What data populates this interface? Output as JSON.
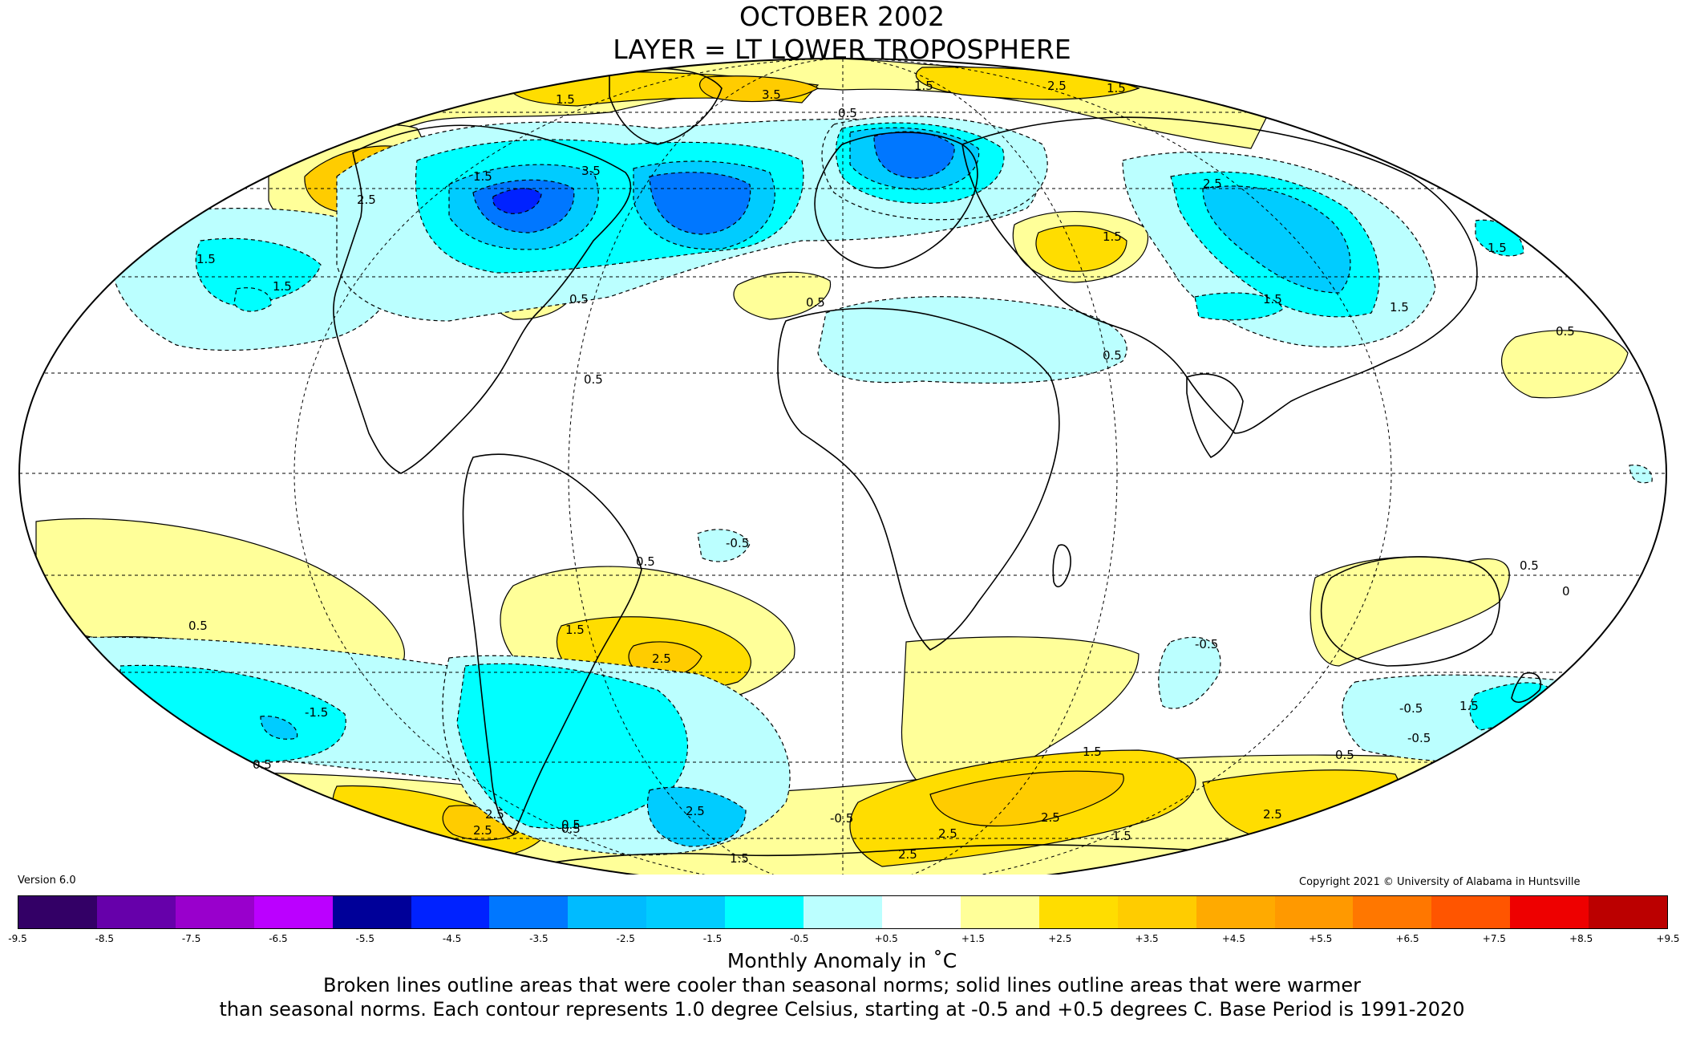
{
  "title": {
    "line1": "OCTOBER 2002",
    "line2": "LAYER = LT LOWER TROPOSPHERE"
  },
  "version": "Version 6.0",
  "copyright": "Copyright 2021 © University of Alabama in Huntsville",
  "colorbar": {
    "colors": [
      "#330066",
      "#6600aa",
      "#9900cc",
      "#bb00ff",
      "#000099",
      "#0022ff",
      "#0077ff",
      "#00bbff",
      "#00ccff",
      "#00ffff",
      "#bbffff",
      "#ffffff",
      "#ffff99",
      "#ffdd00",
      "#ffcc00",
      "#ffaa00",
      "#ff9900",
      "#ff7700",
      "#ff5500",
      "#ee0000",
      "#bb0000"
    ],
    "ticks": [
      "-9.5",
      "-8.5",
      "-7.5",
      "-6.5",
      "-5.5",
      "-4.5",
      "-3.5",
      "-2.5",
      "-1.5",
      "-0.5",
      "+0.5",
      "+1.5",
      "+2.5",
      "+3.5",
      "+4.5",
      "+5.5",
      "+6.5",
      "+7.5",
      "+8.5",
      "+9.5"
    ]
  },
  "units": "Monthly Anomaly in ˚C",
  "caption": {
    "line1": "Broken lines outline areas that were cooler than seasonal norms; solid lines outline areas that were warmer",
    "line2": "than seasonal norms. Each contour represents 1.0 degree Celsius, starting at -0.5 and +0.5 degrees C. Base Period is 1991-2020"
  },
  "map": {
    "contour_labels": [
      "1.5",
      "3.5",
      "1.5",
      "2.5",
      "1.5",
      "0.5",
      "2.5",
      "1.5",
      "3.5",
      "1.5",
      "2.5",
      "1.5",
      "1.5",
      "0.5",
      "0.5",
      "0.5",
      "1.5",
      "1.5",
      "0.5",
      "0.5",
      "1.5",
      "0.5",
      "-0.5",
      "0.5",
      "1.5",
      "2.5",
      "-1.5",
      "0.5",
      "2.5",
      "2.5",
      "0.5",
      "-0.5",
      "1.5",
      "0.5",
      "0.5",
      "0",
      "-0.5",
      "-0.5",
      "1.5",
      "0.5",
      "-0.5",
      "1.5",
      "2.5",
      "2.5",
      "2.5",
      "1.5",
      "2.5",
      "2.5"
    ],
    "colors": {
      "warm_0_5": "#ffff99",
      "warm_1_5": "#ffdd00",
      "warm_2_5": "#ffcc00",
      "warm_3_5": "#ffaa00",
      "cool_0_5": "#bbffff",
      "cool_1_5": "#00ffff",
      "cool_2_5": "#00ccff",
      "cool_3_5": "#00bbff",
      "cool_4_5": "#0077ff",
      "cool_5_5": "#0022ff"
    }
  }
}
